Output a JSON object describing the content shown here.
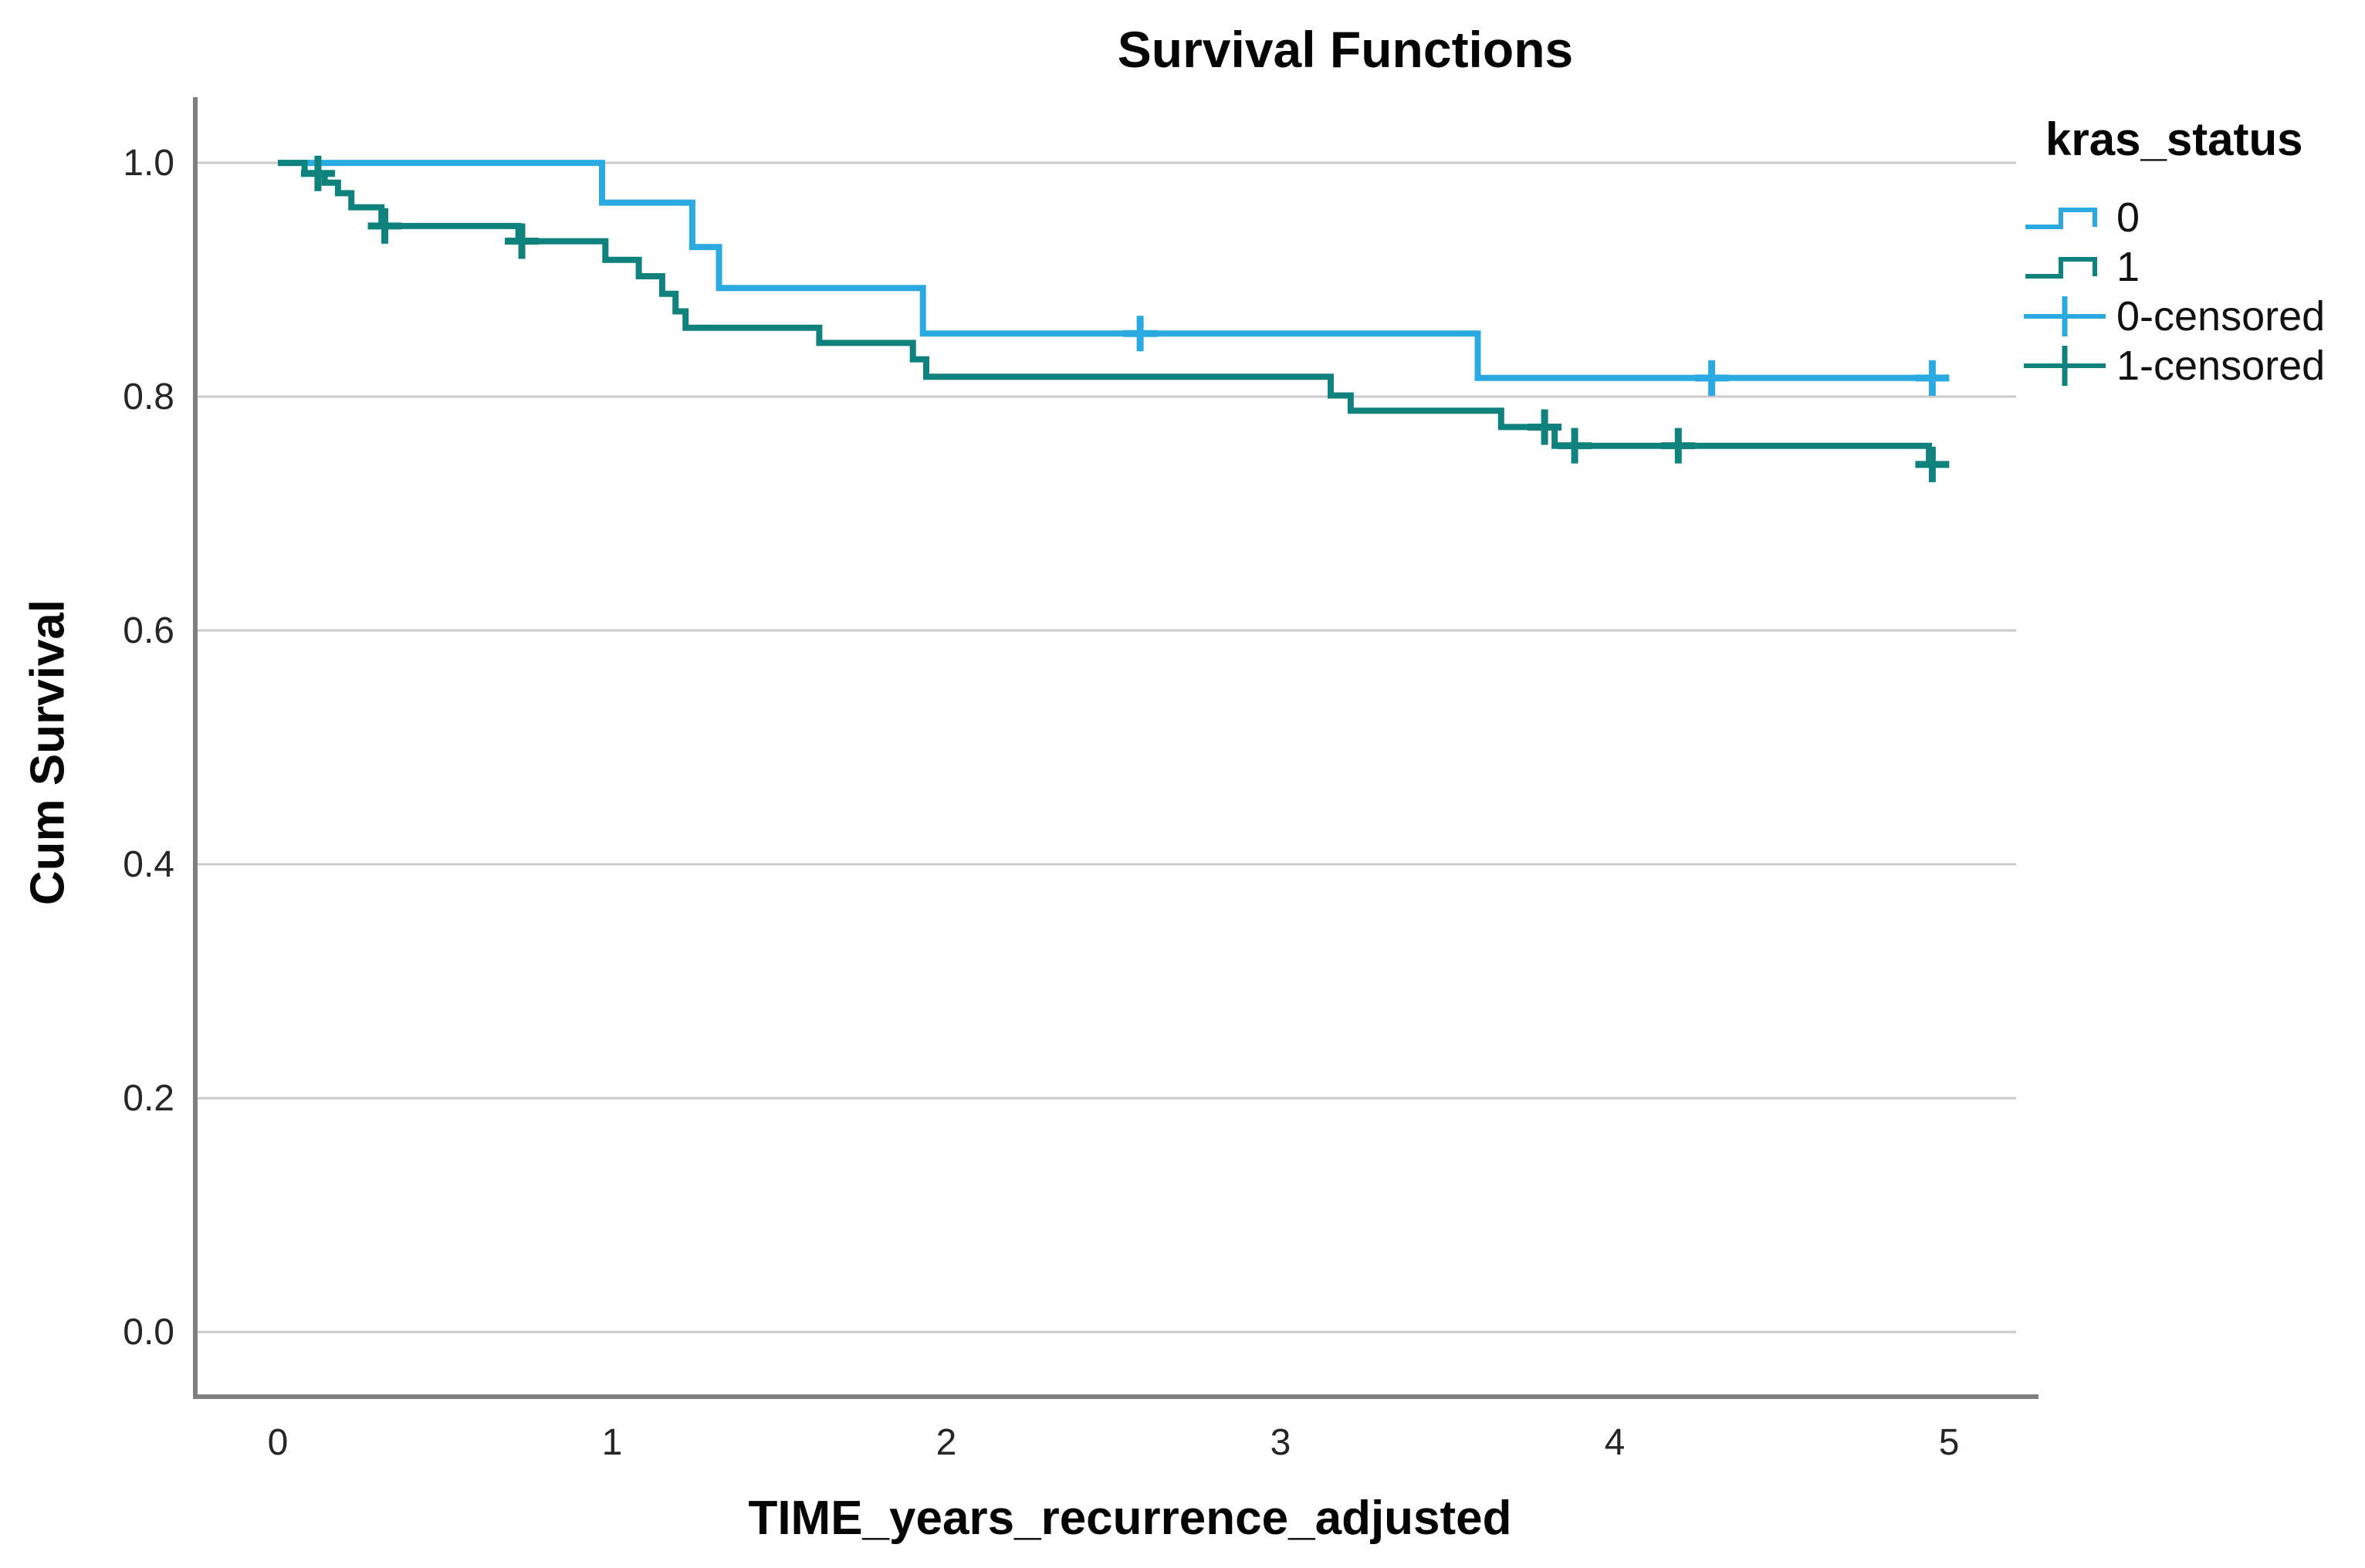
{
  "style": {
    "background": "#ffffff",
    "grid_color": "#CBCBCB",
    "axis_color": "#7F7F7F",
    "tick_text_color": "#262626",
    "series_0_color": "#2BAAE2",
    "series_1_color": "#10827E"
  },
  "chart_data": {
    "type": "line",
    "subtype": "kaplan-meier-step-function",
    "title": "Survival Functions",
    "xlabel": "TIME_years_recurrence_adjusted",
    "ylabel": "Cum Survival",
    "xlim": [
      -0.247,
      5.247
    ],
    "ylim": [
      -0.0554,
      1.0535
    ],
    "grid": "horizontal",
    "legend_position": "top-right",
    "x_ticks": [
      {
        "value": 0,
        "label": "0"
      },
      {
        "value": 1,
        "label": "1"
      },
      {
        "value": 2,
        "label": "2"
      },
      {
        "value": 3,
        "label": "3"
      },
      {
        "value": 4,
        "label": "4"
      },
      {
        "value": 5,
        "label": "5"
      }
    ],
    "y_ticks": [
      {
        "value": 1.0,
        "label": "1.0"
      },
      {
        "value": 0.8,
        "label": "0.8"
      },
      {
        "value": 0.6,
        "label": "0.6"
      },
      {
        "value": 0.4,
        "label": "0.4"
      },
      {
        "value": 0.2,
        "label": "0.2"
      },
      {
        "value": 0.0,
        "label": "0.0"
      }
    ],
    "series": [
      {
        "name": "0",
        "color": "#2BAAE2",
        "end_x": 4.98,
        "steps": [
          [
            0,
            1.0
          ],
          [
            0.97,
            0.966
          ],
          [
            1.24,
            0.928
          ],
          [
            1.32,
            0.893
          ],
          [
            1.93,
            0.854
          ],
          [
            3.59,
            0.816
          ]
        ],
        "censored": [
          [
            2.58,
            0.854
          ],
          [
            4.29,
            0.816
          ],
          [
            4.95,
            0.816
          ]
        ]
      },
      {
        "name": "1",
        "color": "#10827E",
        "end_x": 4.98,
        "steps": [
          [
            0,
            1.0
          ],
          [
            0.08,
            0.991
          ],
          [
            0.14,
            0.983
          ],
          [
            0.18,
            0.974
          ],
          [
            0.22,
            0.962
          ],
          [
            0.31,
            0.946
          ],
          [
            0.72,
            0.933
          ],
          [
            0.98,
            0.917
          ],
          [
            1.08,
            0.903
          ],
          [
            1.15,
            0.888
          ],
          [
            1.19,
            0.873
          ],
          [
            1.22,
            0.859
          ],
          [
            1.62,
            0.846
          ],
          [
            1.9,
            0.832
          ],
          [
            1.94,
            0.817
          ],
          [
            3.15,
            0.801
          ],
          [
            3.21,
            0.788
          ],
          [
            3.66,
            0.774
          ],
          [
            3.82,
            0.758
          ],
          [
            4.94,
            0.742
          ]
        ],
        "censored": [
          [
            0.12,
            0.991
          ],
          [
            0.32,
            0.946
          ],
          [
            0.73,
            0.933
          ],
          [
            3.79,
            0.774
          ],
          [
            3.88,
            0.758
          ],
          [
            4.19,
            0.758
          ],
          [
            4.95,
            0.742
          ]
        ]
      }
    ],
    "legend": {
      "title": "kras_status",
      "entries": [
        {
          "label": "0",
          "marker": "step",
          "color": "#2BAAE2"
        },
        {
          "label": "1",
          "marker": "step",
          "color": "#10827E"
        },
        {
          "label": "0-censored",
          "marker": "cross",
          "color": "#2BAAE2"
        },
        {
          "label": "1-censored",
          "marker": "cross",
          "color": "#10827E"
        }
      ]
    }
  }
}
